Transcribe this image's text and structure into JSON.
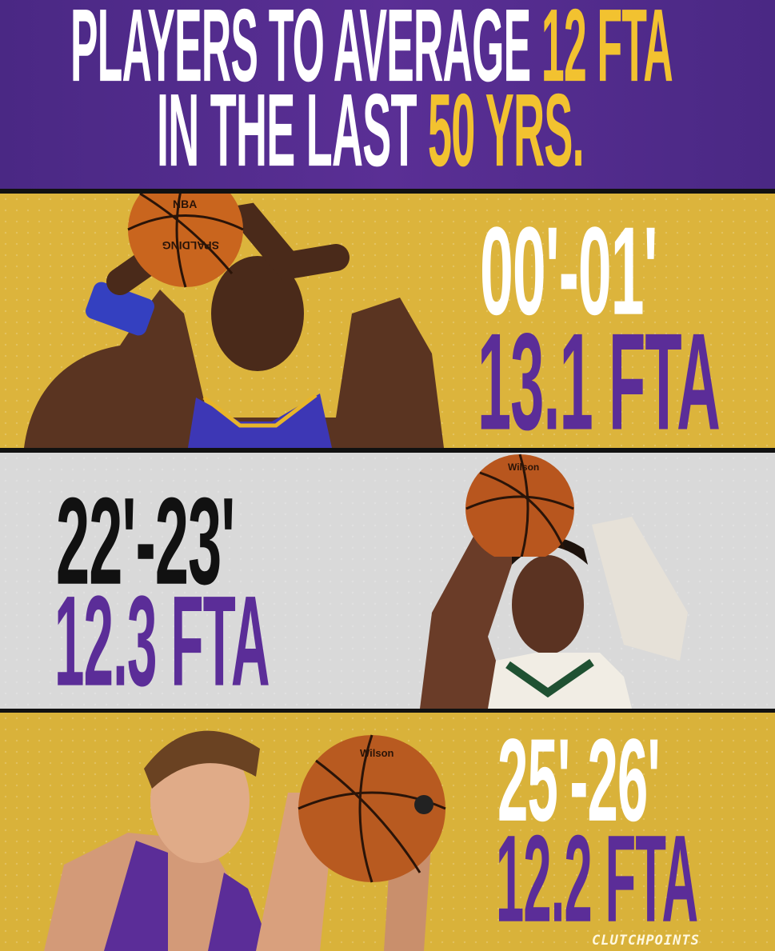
{
  "header": {
    "line1_white": "PLAYERS TO AVERAGE",
    "line1_gold": "12 FTA",
    "line2_white": "IN THE LAST",
    "line2_gold": "50 YRS."
  },
  "entries": [
    {
      "season": "00'-01'",
      "fta": "13.1 FTA"
    },
    {
      "season": "22'-23'",
      "fta": "12.3 FTA"
    },
    {
      "season": "25'-26'",
      "fta": "12.2 FTA"
    }
  ],
  "ball_labels": {
    "ball1": "SPALDING",
    "ball1_league": "NBA",
    "ball2": "Wilson",
    "ball3": "Wilson"
  },
  "brand": "CLUTCHPOINTS",
  "colors": {
    "purple": "#552583",
    "gold": "#f2c230",
    "panel_gold": "#dcb43c",
    "panel_grey": "#d9d9d9"
  }
}
